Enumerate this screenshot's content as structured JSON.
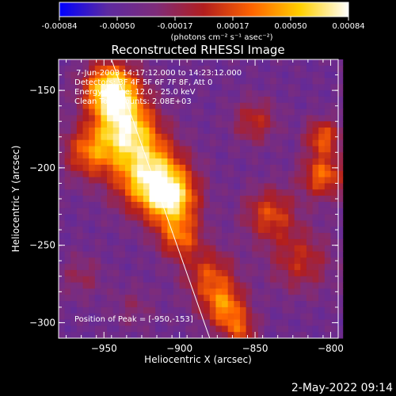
{
  "colorbar": {
    "ticks": [
      "-0.00084",
      "-0.00050",
      "-0.00017",
      "0.00017",
      "0.00050",
      "0.00084"
    ],
    "units": "(photons cm⁻² s⁻¹ asec⁻²)"
  },
  "chart_data": {
    "type": "heatmap",
    "title": "Reconstructed RHESSI Image",
    "xlabel": "Heliocentric X (arcsec)",
    "ylabel": "Heliocentric Y (arcsec)",
    "xlim": [
      -980,
      -795
    ],
    "ylim": [
      -310,
      -130
    ],
    "x_ticks": [
      -950,
      -900,
      -850,
      -800
    ],
    "y_ticks": [
      -300,
      -250,
      -200,
      -150
    ],
    "x_tick_labels": [
      "−950",
      "−900",
      "−850",
      "−800"
    ],
    "y_tick_labels": [
      "−300",
      "−250",
      "−200",
      "−150"
    ],
    "color_range": [
      -0.00084,
      0.00084
    ],
    "colormap": [
      "#0000ff",
      "#5d2aa0",
      "#7e2c7a",
      "#b21e1e",
      "#ff6400",
      "#ffd000",
      "#ffffff"
    ],
    "info_lines": [
      "7-Jun-2003 14:17:12.000 to 14:23:12.000",
      "Detectors: 3F 4F 5F 6F 7F 8F, Att 0",
      "Energy Range: 12.0 - 25.0 keV",
      "Clean    Total counts: 2.08E+03"
    ],
    "peak_label": "Position of Peak = [-950,-153]",
    "peak_position": [
      -950,
      -153
    ],
    "limb_line": [
      [
        -945,
        -130
      ],
      [
        -880,
        -310
      ]
    ]
  },
  "footer": {
    "timestamp": "2-May-2022 09:14"
  }
}
